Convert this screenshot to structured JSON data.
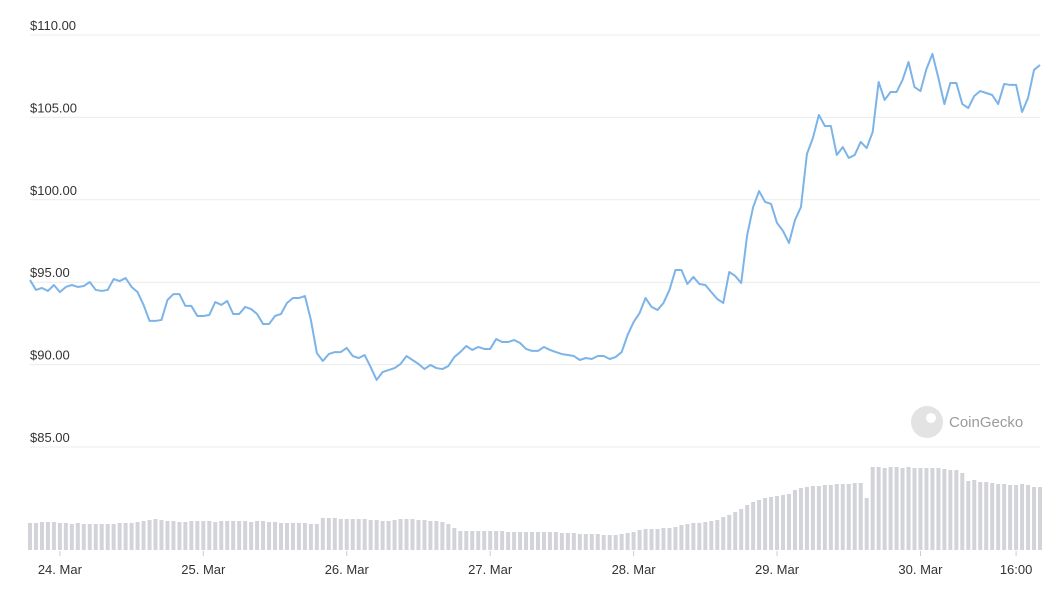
{
  "chart_data": {
    "type": "line",
    "watermark": "CoinGecko",
    "categories": [
      null,
      null,
      null,
      null,
      null,
      "24. Mar",
      null,
      null,
      null,
      null,
      null,
      null,
      null,
      null,
      null,
      null,
      null,
      null,
      null,
      null,
      null,
      null,
      null,
      null,
      null,
      null,
      null,
      null,
      null,
      "25. Mar",
      null,
      null,
      null,
      null,
      null,
      null,
      null,
      null,
      null,
      null,
      null,
      null,
      null,
      null,
      null,
      null,
      null,
      null,
      null,
      null,
      null,
      null,
      null,
      "26. Mar",
      null,
      null,
      null,
      null,
      null,
      null,
      null,
      null,
      null,
      null,
      null,
      null,
      null,
      null,
      null,
      null,
      null,
      null,
      null,
      null,
      null,
      null,
      null,
      "27. Mar",
      null,
      null,
      null,
      null,
      null,
      null,
      null,
      null,
      null,
      null,
      null,
      null,
      null,
      null,
      null,
      null,
      null,
      null,
      null,
      null,
      null,
      null,
      null,
      "28. Mar",
      null,
      null,
      null,
      null,
      null,
      null,
      null,
      null,
      null,
      null,
      null,
      null,
      null,
      null,
      null,
      null,
      null,
      null,
      null,
      null,
      null,
      null,
      null,
      "29. Mar",
      null,
      null,
      null,
      null,
      null,
      null,
      null,
      null,
      null,
      null,
      null,
      null,
      null,
      null,
      null,
      null,
      null,
      null,
      null,
      null,
      null,
      null,
      null,
      "30. Mar",
      null,
      null,
      null,
      null,
      null,
      null,
      null,
      null,
      null,
      null,
      null,
      null,
      null,
      null,
      null,
      "16:00",
      null,
      null,
      null,
      null
    ],
    "series": [
      {
        "color": "#7cb4e8",
        "values": [
          95.13,
          94.53,
          94.65,
          94.47,
          94.83,
          94.4,
          94.71,
          94.83,
          94.71,
          94.77,
          95.01,
          94.53,
          94.47,
          94.53,
          95.19,
          95.07,
          95.25,
          94.71,
          94.4,
          93.62,
          92.65,
          92.65,
          92.71,
          93.92,
          94.28,
          94.28,
          93.56,
          93.56,
          92.95,
          92.95,
          93.01,
          93.8,
          93.62,
          93.86,
          93.07,
          93.07,
          93.5,
          93.37,
          93.07,
          92.46,
          92.46,
          92.95,
          93.07,
          93.74,
          94.04,
          94.04,
          94.16,
          92.71,
          90.7,
          90.22,
          90.64,
          90.76,
          90.76,
          91.01,
          90.52,
          90.4,
          90.58,
          89.85,
          89.07,
          89.55,
          89.67,
          89.79,
          90.04,
          90.52,
          90.28,
          90.04,
          89.73,
          89.98,
          89.79,
          89.73,
          89.91,
          90.46,
          90.76,
          91.13,
          90.89,
          91.07,
          90.95,
          90.95,
          91.55,
          91.37,
          91.37,
          91.49,
          91.31,
          90.95,
          90.83,
          90.83,
          91.07,
          90.89,
          90.76,
          90.64,
          90.58,
          90.52,
          90.28,
          90.4,
          90.34,
          90.52,
          90.52,
          90.34,
          90.46,
          90.76,
          91.8,
          92.58,
          93.13,
          94.04,
          93.5,
          93.31,
          93.74,
          94.53,
          95.74,
          95.74,
          94.89,
          95.32,
          94.89,
          94.83,
          94.4,
          93.98,
          93.74,
          95.62,
          95.38,
          94.95,
          97.86,
          99.56,
          100.53,
          99.87,
          99.75,
          98.59,
          98.11,
          97.38,
          98.77,
          99.56,
          102.78,
          103.75,
          105.15,
          104.48,
          104.48,
          102.72,
          103.2,
          102.54,
          102.72,
          103.51,
          103.14,
          104.11,
          107.15,
          106.06,
          106.54,
          106.54,
          107.27,
          108.36,
          106.84,
          106.6,
          107.94,
          108.85,
          107.39,
          105.81,
          107.09,
          107.09,
          105.81,
          105.57,
          106.3,
          106.6,
          106.48,
          106.36,
          105.81,
          107.03,
          106.97,
          106.97,
          105.33,
          106.18,
          107.88,
          108.18
        ]
      },
      {
        "color": "#d3d4d9",
        "axis": "y2",
        "values": [
          27,
          27,
          28,
          28,
          28,
          27,
          27,
          26,
          27,
          26,
          26,
          26,
          26,
          26,
          26,
          27,
          27,
          27,
          28,
          29,
          30,
          31,
          30,
          29,
          29,
          28,
          28,
          29,
          29,
          29,
          29,
          28,
          29,
          29,
          29,
          29,
          29,
          28,
          29,
          29,
          28,
          28,
          27,
          27,
          27,
          27,
          27,
          26,
          26,
          32,
          32,
          32,
          31,
          31,
          31,
          31,
          31,
          30,
          30,
          29,
          29,
          30,
          31,
          31,
          31,
          30,
          30,
          29,
          29,
          28,
          26,
          22,
          19,
          19,
          19,
          19,
          19,
          19,
          19,
          19,
          18,
          18,
          18,
          18,
          18,
          18,
          18,
          18,
          18,
          17,
          17,
          17,
          16,
          16,
          16,
          16,
          15,
          15,
          15,
          16,
          17,
          18,
          20,
          21,
          21,
          21,
          22,
          22,
          23,
          25,
          26,
          27,
          27,
          28,
          29,
          30,
          33,
          35,
          38,
          41,
          45,
          48,
          50,
          52,
          53,
          54,
          55,
          56,
          60,
          62,
          63,
          64,
          64,
          65,
          65,
          66,
          66,
          66,
          67,
          67,
          52,
          83,
          83,
          82,
          83,
          83,
          82,
          83,
          82,
          82,
          82,
          82,
          82,
          81,
          80,
          80,
          77,
          69,
          70,
          68,
          68,
          67,
          66,
          66,
          65,
          65,
          66,
          65,
          63,
          63
        ]
      }
    ],
    "ylim": [
      85,
      110
    ],
    "yticks": [
      {
        "value": 85,
        "label": "$85.00"
      },
      {
        "value": 90,
        "label": "$90.00"
      },
      {
        "value": 95,
        "label": "$95.00"
      },
      {
        "value": 100,
        "label": "$100.00"
      },
      {
        "value": 105,
        "label": "$105.00"
      },
      {
        "value": 110,
        "label": "$110.00"
      }
    ],
    "y2lim": [
      0,
      100
    ],
    "grid": true
  }
}
